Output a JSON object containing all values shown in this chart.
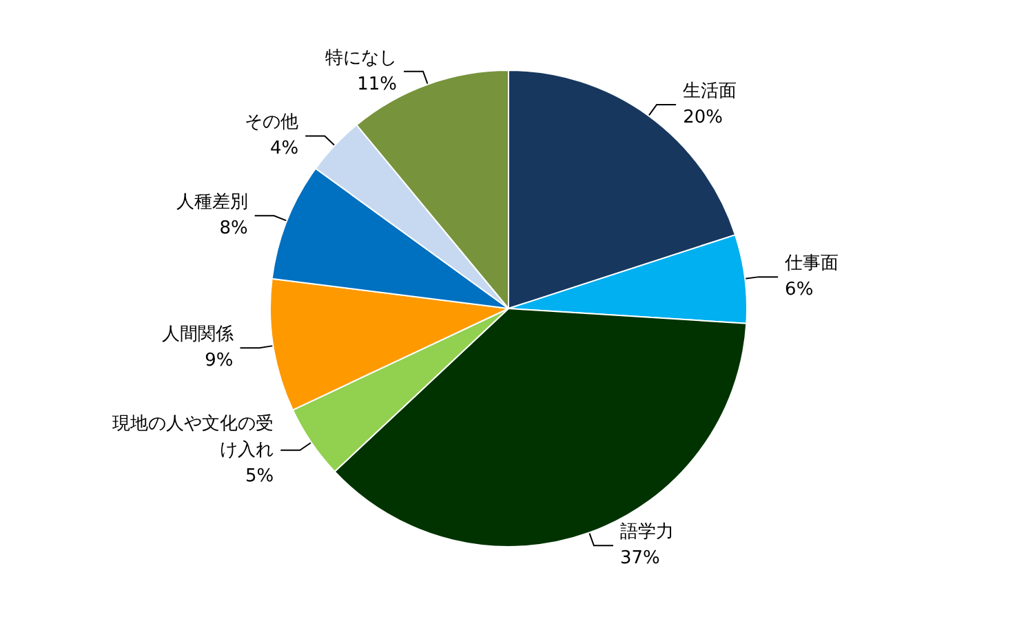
{
  "chart_data": {
    "type": "pie",
    "categories": [
      "生活面",
      "仕事面",
      "語学力",
      "現地の人や文化の受け入れ",
      "人間関係",
      "人種差別",
      "その他",
      "特になし"
    ],
    "values": [
      20,
      6,
      37,
      5,
      9,
      8,
      4,
      11
    ],
    "value_labels": [
      "20%",
      "6%",
      "37%",
      "5%",
      "9%",
      "8%",
      "4%",
      "11%"
    ],
    "colors": [
      "#17375e",
      "#00b0f0",
      "#003300",
      "#92d050",
      "#ff9900",
      "#0070c0",
      "#c6d9f1",
      "#77933c"
    ],
    "legend": false
  }
}
